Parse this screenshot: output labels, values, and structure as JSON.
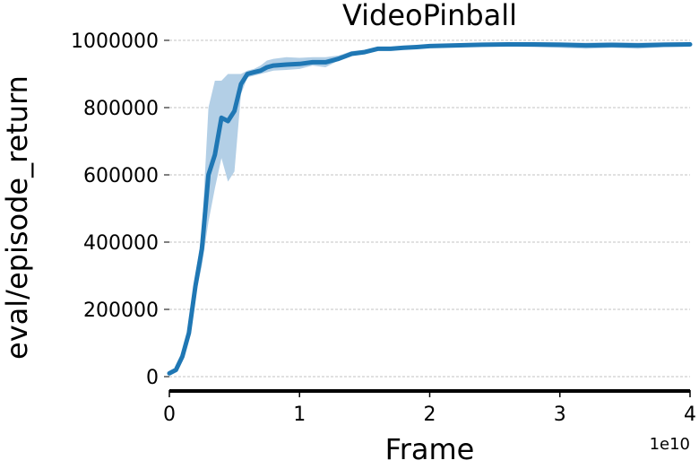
{
  "chart_data": {
    "type": "line",
    "title": "VideoPinball",
    "xlabel": "Frame",
    "ylabel": "eval/episode_return",
    "x_offset_label": "1e10",
    "xlim": [
      0,
      4
    ],
    "ylim": [
      -40000,
      1040000
    ],
    "x_ticks": [
      0,
      1,
      2,
      3,
      4
    ],
    "x_tick_labels": [
      "0",
      "1",
      "2",
      "3",
      "4"
    ],
    "y_ticks": [
      0,
      200000,
      400000,
      600000,
      800000,
      1000000
    ],
    "y_tick_labels": [
      "0",
      "200000",
      "400000",
      "600000",
      "800000",
      "1000000"
    ],
    "grid": "horizontal",
    "colors": {
      "line": "#1f77b4",
      "band": "#b3cfe6"
    },
    "series": [
      {
        "x": [
          0,
          0.05,
          0.1,
          0.15,
          0.2,
          0.25,
          0.3,
          0.35,
          0.4,
          0.45,
          0.5,
          0.55,
          0.6,
          0.65,
          0.7,
          0.75,
          0.8,
          0.9,
          1.0,
          1.1,
          1.2,
          1.3,
          1.4,
          1.5,
          1.6,
          1.7,
          1.8,
          1.9,
          2.0,
          2.2,
          2.4,
          2.6,
          2.8,
          3.0,
          3.2,
          3.4,
          3.6,
          3.8,
          4.0
        ],
        "values": [
          10000,
          20000,
          60000,
          130000,
          270000,
          380000,
          600000,
          660000,
          770000,
          760000,
          790000,
          870000,
          900000,
          905000,
          910000,
          920000,
          925000,
          928000,
          930000,
          935000,
          935000,
          945000,
          960000,
          965000,
          975000,
          975000,
          978000,
          980000,
          983000,
          985000,
          987000,
          988000,
          988000,
          987000,
          985000,
          986000,
          985000,
          987000,
          988000
        ],
        "lower": [
          10000,
          18000,
          55000,
          120000,
          240000,
          330000,
          460000,
          560000,
          650000,
          580000,
          610000,
          840000,
          890000,
          895000,
          900000,
          905000,
          910000,
          912000,
          915000,
          925000,
          920000,
          940000,
          955000,
          960000,
          970000,
          972000,
          974000,
          976000,
          980000,
          982000,
          982000,
          982000,
          980000,
          978000,
          975000,
          978000,
          975000,
          980000,
          982000
        ],
        "upper": [
          10000,
          22000,
          65000,
          140000,
          300000,
          430000,
          800000,
          880000,
          880000,
          900000,
          900000,
          900000,
          910000,
          915000,
          925000,
          940000,
          945000,
          950000,
          948000,
          950000,
          950000,
          955000,
          968000,
          972000,
          980000,
          980000,
          982000,
          985000,
          988000,
          990000,
          992000,
          993000,
          994000,
          994000,
          993000,
          995000,
          993000,
          994000,
          995000
        ]
      }
    ]
  }
}
